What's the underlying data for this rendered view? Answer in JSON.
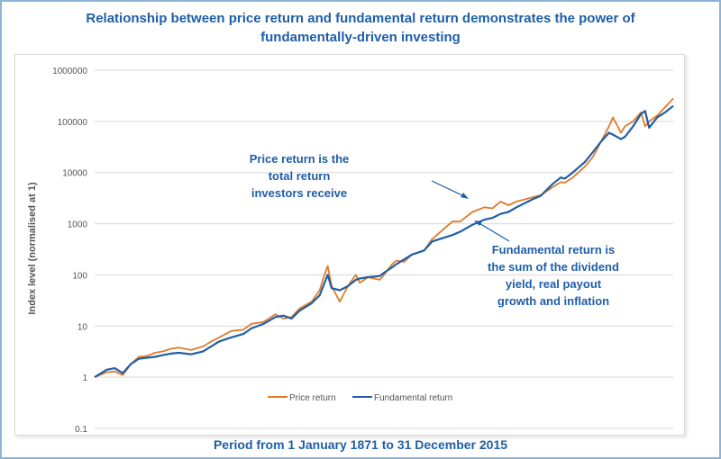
{
  "header": {
    "title_line1": "Relationship between price return and fundamental return demonstrates the power of",
    "title_line2": "fundamentally-driven investing"
  },
  "footer": {
    "text": "Period from 1 January 1871 to 31 December 2015"
  },
  "chart_data": {
    "type": "line",
    "yscale": "log",
    "ylabel": "Index level (normalised at 1)",
    "ylim": [
      0.1,
      1000000
    ],
    "yticks": [
      "0.1",
      "1",
      "10",
      "100",
      "1000",
      "10000",
      "100000",
      "1000000"
    ],
    "xlim": [
      1871,
      2015
    ],
    "legend_position": "bottom",
    "grid": "horizontal",
    "colors": {
      "price": "#e07b2a",
      "fundamental": "#1f5ea8",
      "annotation": "#1f5ea8"
    },
    "series": [
      {
        "name": "Price return",
        "x": [
          1871,
          1874,
          1876,
          1878,
          1880,
          1882,
          1884,
          1886,
          1888,
          1890,
          1892,
          1895,
          1898,
          1900,
          1902,
          1905,
          1908,
          1910,
          1913,
          1916,
          1918,
          1920,
          1922,
          1925,
          1927,
          1928,
          1929,
          1930,
          1932,
          1934,
          1936,
          1937,
          1939,
          1942,
          1943,
          1945,
          1946,
          1948,
          1950,
          1953,
          1955,
          1960,
          1962,
          1965,
          1968,
          1970,
          1972,
          1974,
          1976,
          1980,
          1982,
          1985,
          1987,
          1988,
          1990,
          1993,
          1995,
          1997,
          1999,
          2000,
          2002,
          2003,
          2005,
          2007,
          2008,
          2009,
          2011,
          2013,
          2015
        ],
        "y": [
          1.0,
          1.25,
          1.3,
          1.1,
          1.8,
          2.5,
          2.6,
          3.0,
          3.2,
          3.6,
          3.8,
          3.4,
          4.0,
          5.0,
          6.0,
          8.0,
          8.5,
          11,
          12,
          17,
          14,
          15,
          22,
          30,
          50,
          90,
          150,
          60,
          30,
          60,
          100,
          70,
          90,
          80,
          100,
          160,
          190,
          180,
          250,
          300,
          500,
          1100,
          1100,
          1700,
          2100,
          2000,
          2700,
          2300,
          2700,
          3300,
          3600,
          5200,
          6500,
          6300,
          8000,
          13000,
          20000,
          40000,
          80000,
          120000,
          60000,
          80000,
          100000,
          150000,
          80000,
          100000,
          130000,
          190000,
          280000
        ]
      },
      {
        "name": "Fundamental return",
        "x": [
          1871,
          1874,
          1876,
          1878,
          1880,
          1882,
          1884,
          1886,
          1888,
          1890,
          1892,
          1895,
          1898,
          1900,
          1902,
          1905,
          1908,
          1910,
          1913,
          1916,
          1918,
          1920,
          1922,
          1925,
          1927,
          1929,
          1930,
          1932,
          1934,
          1936,
          1937,
          1939,
          1942,
          1943,
          1945,
          1946,
          1948,
          1950,
          1953,
          1955,
          1960,
          1962,
          1965,
          1968,
          1970,
          1972,
          1974,
          1976,
          1980,
          1982,
          1985,
          1987,
          1988,
          1990,
          1993,
          1995,
          1997,
          1999,
          2000,
          2002,
          2003,
          2005,
          2007,
          2008,
          2009,
          2011,
          2013,
          2015
        ],
        "y": [
          1.0,
          1.4,
          1.5,
          1.2,
          1.8,
          2.3,
          2.4,
          2.5,
          2.7,
          2.9,
          3.0,
          2.8,
          3.2,
          4.0,
          5.0,
          6.0,
          7.0,
          9.0,
          11,
          15,
          16,
          14,
          20,
          28,
          40,
          100,
          55,
          50,
          60,
          80,
          85,
          90,
          95,
          110,
          140,
          160,
          200,
          250,
          300,
          450,
          600,
          700,
          950,
          1200,
          1300,
          1550,
          1700,
          2100,
          3000,
          3500,
          6000,
          8000,
          7600,
          10000,
          16000,
          25000,
          40000,
          60000,
          55000,
          45000,
          50000,
          80000,
          140000,
          160000,
          75000,
          120000,
          150000,
          200000
        ]
      }
    ],
    "annotations": [
      {
        "lines": [
          "Price return is the",
          "total return",
          "investors receive"
        ]
      },
      {
        "lines": [
          "Fundamental return is",
          "the sum of the dividend",
          "yield, real payout",
          "growth and inflation"
        ]
      }
    ]
  }
}
